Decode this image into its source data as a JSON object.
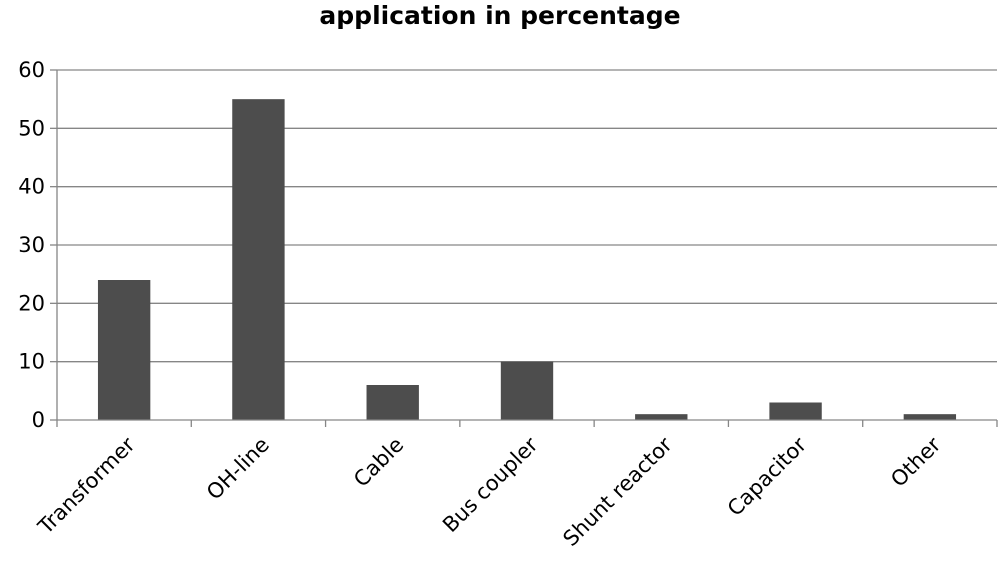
{
  "chart_data": {
    "type": "bar",
    "title": "application in percentage",
    "xlabel": "",
    "ylabel": "",
    "categories": [
      "Transformer",
      "OH-line",
      "Cable",
      "Bus coupler",
      "Shunt reactor",
      "Capacitor",
      "Other"
    ],
    "values": [
      24,
      55,
      6,
      10,
      1,
      3,
      1
    ],
    "ylim": [
      0,
      60
    ],
    "yticks": [
      0,
      10,
      20,
      30,
      40,
      50,
      60
    ],
    "grid": true,
    "legend": "none",
    "bar_color": "#4d4d4d",
    "grid_color": "#868686",
    "axis_color": "#868686"
  }
}
